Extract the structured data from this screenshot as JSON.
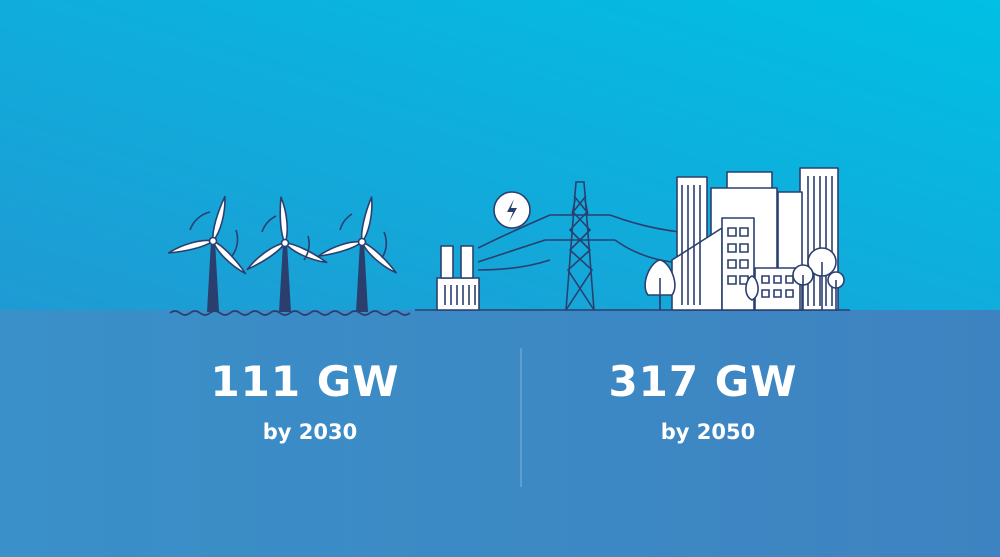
{
  "stats": [
    {
      "value": "111 GW",
      "caption": "by 2030"
    },
    {
      "value": "317 GW",
      "caption": "by 2050"
    }
  ]
}
